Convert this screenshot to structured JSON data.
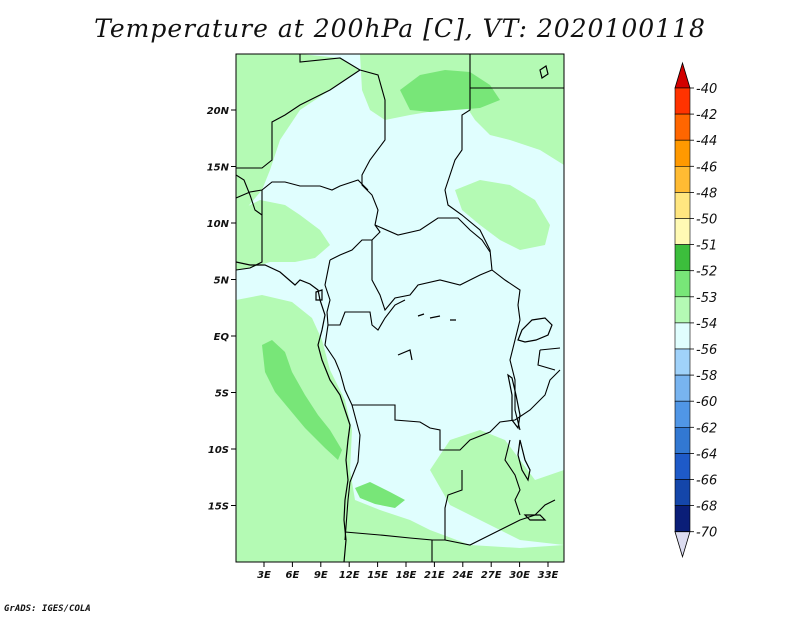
{
  "title": "Temperature at 200hPa [C], VT: 2020100118",
  "credit": "GrADS: IGES/COLA",
  "map": {
    "lon_labels": [
      "3E",
      "6E",
      "9E",
      "12E",
      "15E",
      "18E",
      "21E",
      "24E",
      "27E",
      "30E",
      "33E"
    ],
    "lat_labels": [
      "20N",
      "15N",
      "10N",
      "5N",
      "EQ",
      "5S",
      "10S",
      "15S"
    ],
    "background_color": "#e0fefe"
  },
  "colorbar": {
    "levels": [
      {
        "label": "-40",
        "color": "#e60000"
      },
      {
        "label": "-42",
        "color": "#ff3300"
      },
      {
        "label": "-44",
        "color": "#ff6600"
      },
      {
        "label": "-46",
        "color": "#ff9900"
      },
      {
        "label": "-48",
        "color": "#ffbb33"
      },
      {
        "label": "-50",
        "color": "#ffe680"
      },
      {
        "label": "-51",
        "color": "#fffab4"
      },
      {
        "label": "-52",
        "color": "#3cbe3c"
      },
      {
        "label": "-53",
        "color": "#78e678"
      },
      {
        "label": "-54",
        "color": "#b4fab4"
      },
      {
        "label": "-56",
        "color": "#e0fefe"
      },
      {
        "label": "-58",
        "color": "#a0d2fa"
      },
      {
        "label": "-60",
        "color": "#78b4f0"
      },
      {
        "label": "-62",
        "color": "#5096e6"
      },
      {
        "label": "-64",
        "color": "#3278d2"
      },
      {
        "label": "-66",
        "color": "#1e5ac8"
      },
      {
        "label": "-68",
        "color": "#1446aa"
      },
      {
        "label": "-70",
        "color": "#0a1e78"
      }
    ],
    "top_triangle_color": "#d20000",
    "bottom_triangle_color": "#dcdcf0"
  }
}
